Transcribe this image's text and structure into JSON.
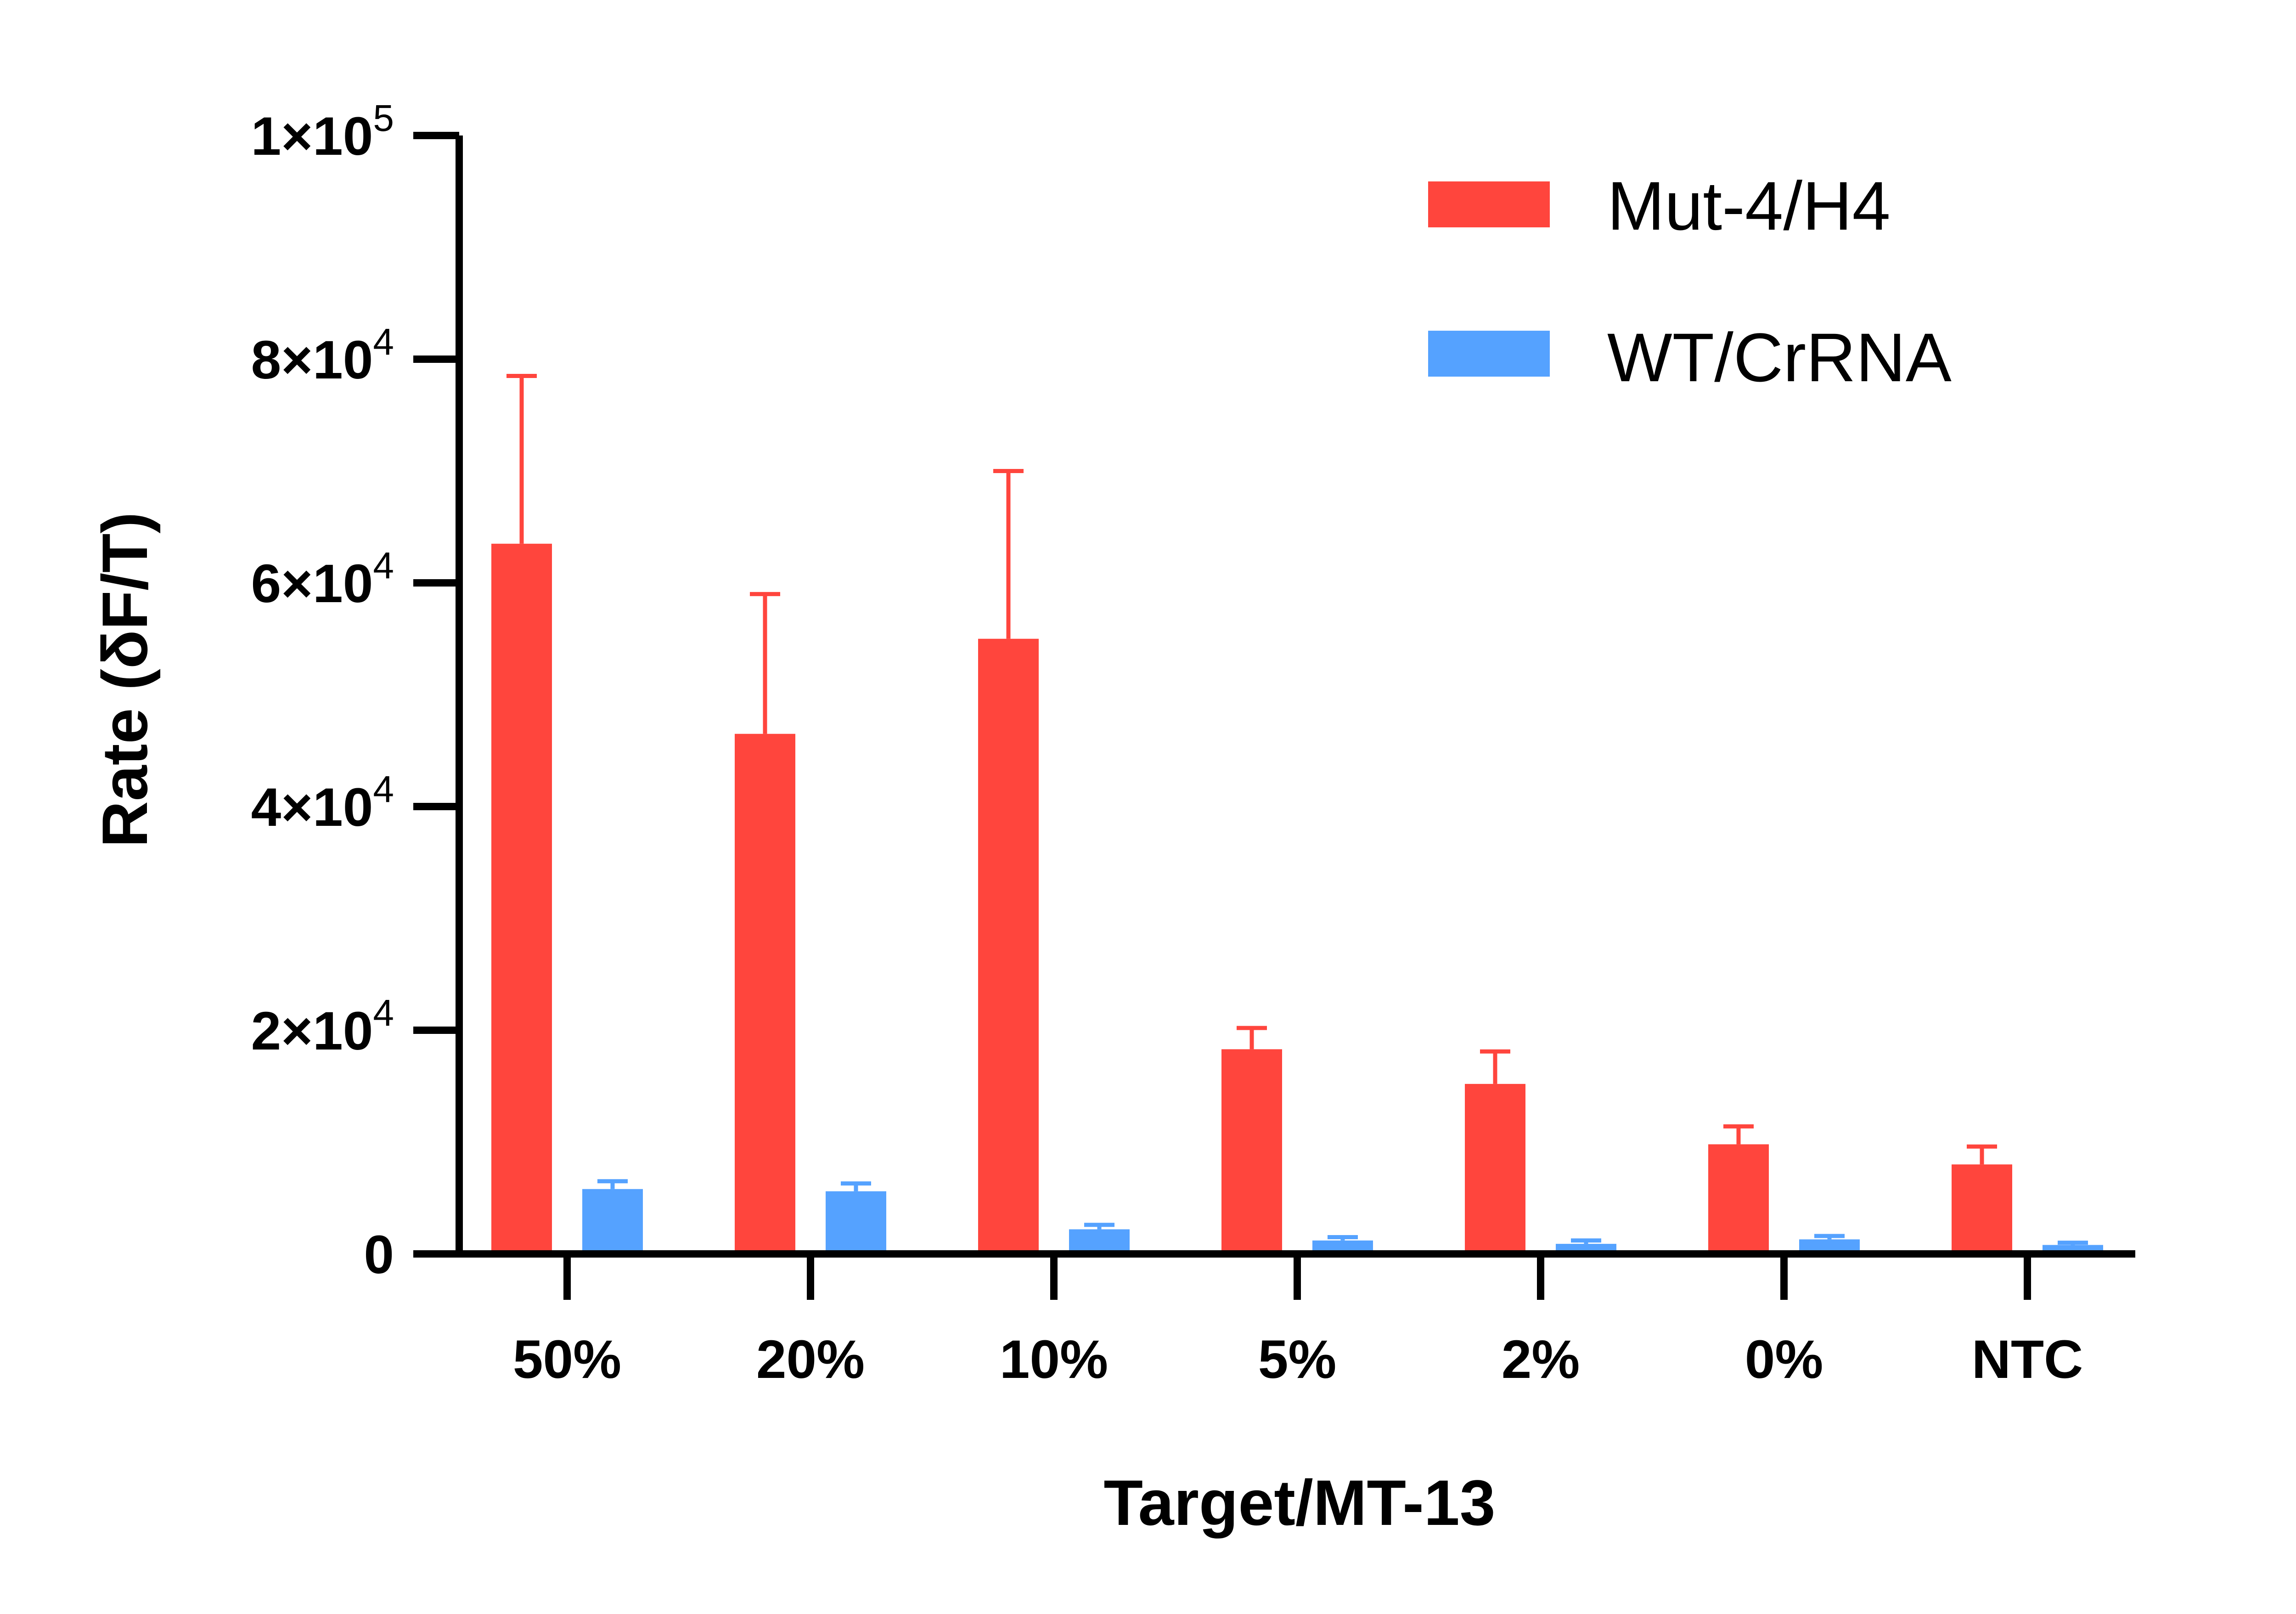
{
  "chart_data": {
    "type": "bar",
    "xlabel": "Target/MT-13",
    "ylabel": "Rate (δF/T)",
    "categories": [
      "50%",
      "20%",
      "10%",
      "5%",
      "2%",
      "0%",
      "NTC"
    ],
    "ylim": [
      0,
      100000
    ],
    "yticks": [
      {
        "value": 0,
        "base": "0",
        "exp": ""
      },
      {
        "value": 20000,
        "base": "2×10",
        "exp": "4"
      },
      {
        "value": 40000,
        "base": "4×10",
        "exp": "4"
      },
      {
        "value": 60000,
        "base": "6×10",
        "exp": "4"
      },
      {
        "value": 80000,
        "base": "8×10",
        "exp": "4"
      },
      {
        "value": 100000,
        "base": "1×10",
        "exp": "5"
      }
    ],
    "series": [
      {
        "name": "Mut-4/H4",
        "color": "#FF453D",
        "values": [
          63500,
          46500,
          55000,
          18300,
          15200,
          9800,
          8000
        ],
        "errors": [
          15000,
          12500,
          15000,
          1900,
          2900,
          1600,
          1600
        ]
      },
      {
        "name": "WT/CrRNA",
        "color": "#55A2FF",
        "values": [
          5800,
          5600,
          2200,
          1200,
          900,
          1300,
          800
        ],
        "errors": [
          700,
          700,
          400,
          300,
          300,
          300,
          200
        ]
      }
    ],
    "legend_position": "top-right",
    "grid": false
  }
}
